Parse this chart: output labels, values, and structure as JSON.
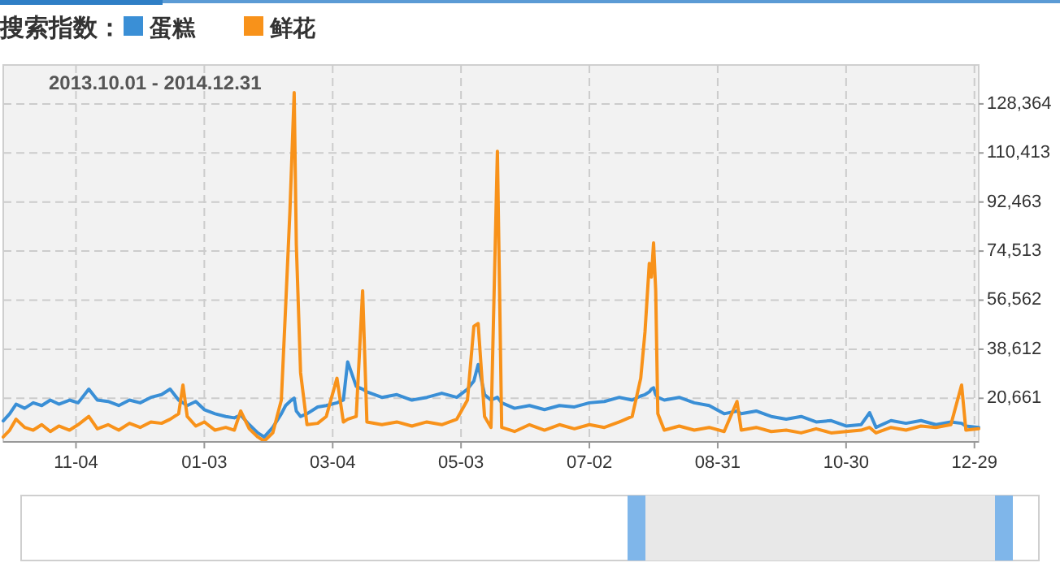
{
  "chart_data": {
    "type": "line",
    "title": "搜索指数：",
    "subtitle": "2013.10.01 - 2014.12.31",
    "legend": "top left",
    "grid": true,
    "line_style": "solid",
    "marker": "none",
    "x": [
      "2013-10-01",
      "2013-10-04",
      "2013-10-07",
      "2013-10-11",
      "2013-10-15",
      "2013-10-19",
      "2013-10-23",
      "2013-10-27",
      "2013-11-01",
      "2013-11-05",
      "2013-11-10",
      "2013-11-14",
      "2013-11-19",
      "2013-11-24",
      "2013-11-29",
      "2013-12-04",
      "2013-12-09",
      "2013-12-14",
      "2013-12-18",
      "2013-12-22",
      "2013-12-24",
      "2013-12-26",
      "2013-12-30",
      "2014-01-03",
      "2014-01-08",
      "2014-01-13",
      "2014-01-17",
      "2014-01-20",
      "2014-01-24",
      "2014-01-28",
      "2014-01-31",
      "2014-02-04",
      "2014-02-08",
      "2014-02-10",
      "2014-02-12",
      "2014-02-14",
      "2014-02-15",
      "2014-02-17",
      "2014-02-20",
      "2014-02-25",
      "2014-03-01",
      "2014-03-06",
      "2014-03-09",
      "2014-03-11",
      "2014-03-15",
      "2014-03-18",
      "2014-03-20",
      "2014-03-27",
      "2014-04-03",
      "2014-04-10",
      "2014-04-17",
      "2014-04-24",
      "2014-05-01",
      "2014-05-06",
      "2014-05-09",
      "2014-05-11",
      "2014-05-14",
      "2014-05-17",
      "2014-05-20",
      "2014-05-22",
      "2014-05-28",
      "2014-06-04",
      "2014-06-11",
      "2014-06-18",
      "2014-06-25",
      "2014-07-02",
      "2014-07-09",
      "2014-07-16",
      "2014-07-22",
      "2014-07-26",
      "2014-07-28",
      "2014-07-30",
      "2014-07-31",
      "2014-08-01",
      "2014-08-02",
      "2014-08-03",
      "2014-08-06",
      "2014-08-13",
      "2014-08-20",
      "2014-08-27",
      "2014-09-03",
      "2014-09-09",
      "2014-09-11",
      "2014-09-18",
      "2014-09-25",
      "2014-10-02",
      "2014-10-09",
      "2014-10-16",
      "2014-10-23",
      "2014-10-30",
      "2014-11-06",
      "2014-11-10",
      "2014-11-13",
      "2014-11-20",
      "2014-11-27",
      "2014-12-04",
      "2014-12-11",
      "2014-12-18",
      "2014-12-23",
      "2014-12-25",
      "2014-12-31"
    ],
    "series": [
      {
        "name": "蛋糕",
        "color": "#3a8fd6",
        "values": [
          12400,
          15000,
          18500,
          17000,
          19000,
          18000,
          20000,
          18500,
          20000,
          19000,
          24000,
          20000,
          19500,
          18000,
          20000,
          19000,
          21000,
          22000,
          24000,
          20000,
          19000,
          18000,
          19500,
          16500,
          15000,
          14000,
          13500,
          14500,
          11000,
          8000,
          6500,
          10000,
          15000,
          18000,
          19500,
          20700,
          16000,
          14000,
          15000,
          17500,
          18000,
          19000,
          20000,
          34000,
          25000,
          24000,
          23000,
          21000,
          22000,
          20000,
          21000,
          22500,
          21000,
          24000,
          27000,
          33000,
          22000,
          20000,
          21000,
          19000,
          17000,
          18000,
          16500,
          18000,
          17500,
          19000,
          19500,
          21000,
          20000,
          21500,
          22000,
          23000,
          24000,
          24500,
          22000,
          21000,
          20000,
          21000,
          19000,
          18000,
          15000,
          16000,
          15000,
          16000,
          14000,
          13000,
          14000,
          12000,
          12500,
          10500,
          11000,
          15400,
          10000,
          12500,
          11500,
          12500,
          11000,
          12000,
          11500,
          10500,
          10000
        ]
      },
      {
        "name": "鲜花",
        "color": "#f8921a",
        "values": [
          6500,
          9000,
          13000,
          10000,
          9000,
          11000,
          8500,
          10500,
          9000,
          11000,
          14000,
          9500,
          11000,
          9000,
          11500,
          10000,
          12000,
          11500,
          13000,
          15000,
          25500,
          14000,
          10500,
          12000,
          9000,
          10000,
          9000,
          16000,
          9500,
          6500,
          5000,
          8000,
          20000,
          54000,
          89000,
          132500,
          77000,
          30000,
          11000,
          11500,
          14000,
          28000,
          12000,
          13000,
          14000,
          60000,
          12000,
          11000,
          12000,
          10500,
          12000,
          11000,
          13000,
          20000,
          47000,
          48000,
          14000,
          10000,
          111000,
          10000,
          8500,
          11000,
          9000,
          11000,
          9500,
          11000,
          10000,
          12000,
          14000,
          28000,
          45000,
          70000,
          65000,
          77500,
          60000,
          15000,
          9000,
          10500,
          9000,
          10000,
          8500,
          19500,
          9000,
          10000,
          8500,
          9000,
          8000,
          9500,
          8000,
          8500,
          9000,
          10000,
          8000,
          10000,
          9000,
          10500,
          10000,
          11000,
          25500,
          9000,
          9500
        ]
      }
    ],
    "xlim": [
      "2013-10-01",
      "2014-12-31"
    ],
    "xticks": [
      {
        "value": "2013-11-04",
        "label": "11-04"
      },
      {
        "value": "2014-01-03",
        "label": "01-03"
      },
      {
        "value": "2014-03-04",
        "label": "03-04"
      },
      {
        "value": "2014-05-03",
        "label": "05-03"
      },
      {
        "value": "2014-07-02",
        "label": "07-02"
      },
      {
        "value": "2014-08-31",
        "label": "08-31"
      },
      {
        "value": "2014-10-30",
        "label": "10-30"
      },
      {
        "value": "2014-12-29",
        "label": "12-29"
      }
    ],
    "ylim": [
      4700,
      142600
    ],
    "yticks": [
      {
        "value": 20661,
        "label": "20,661"
      },
      {
        "value": 38612,
        "label": "38,612"
      },
      {
        "value": 56562,
        "label": "56,562"
      },
      {
        "value": 74513,
        "label": "74,513"
      },
      {
        "value": 92463,
        "label": "92,463"
      },
      {
        "value": 110413,
        "label": "110,413"
      },
      {
        "value": 128364,
        "label": "128,364"
      }
    ]
  }
}
